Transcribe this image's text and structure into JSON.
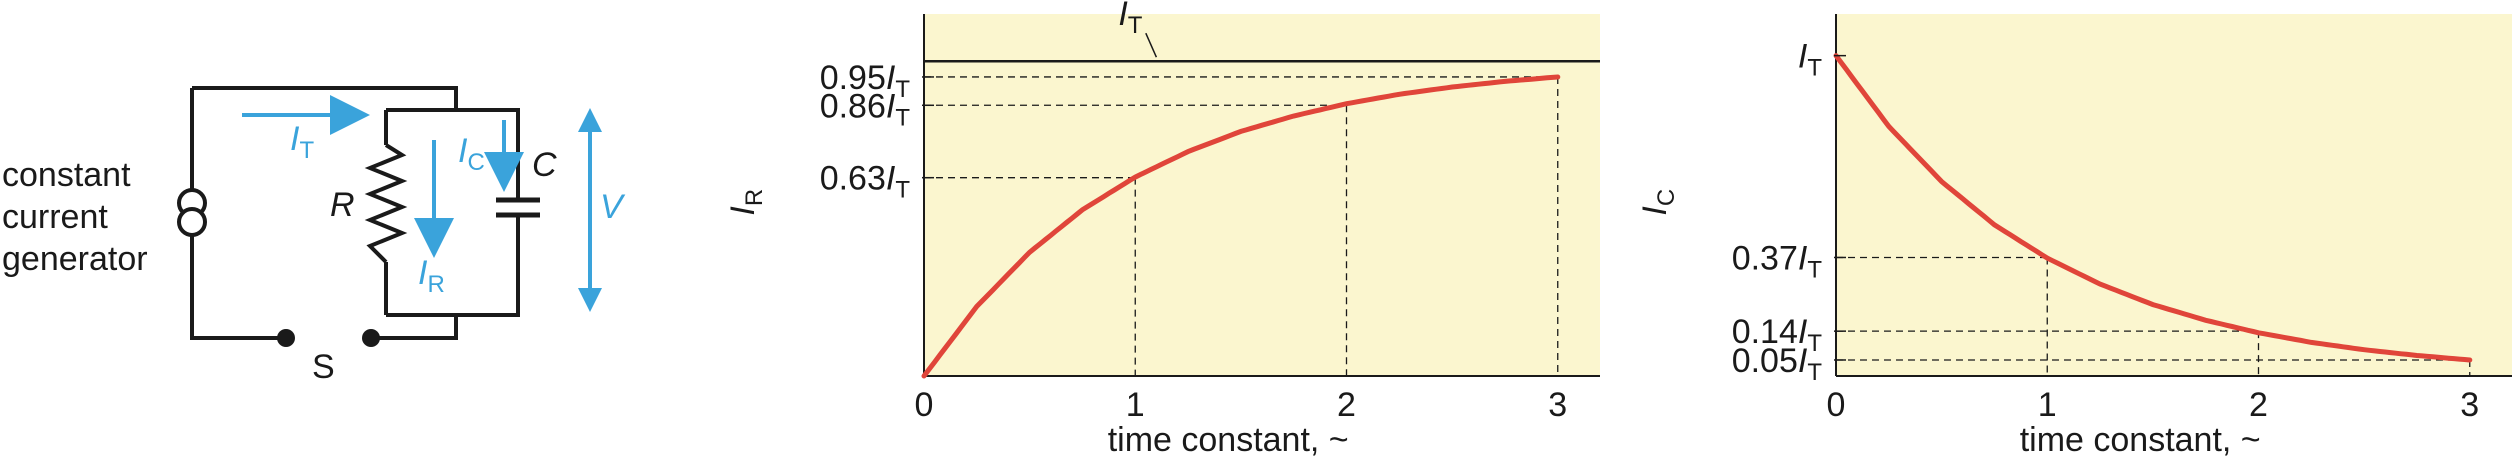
{
  "circuit": {
    "generator_label": [
      "constant",
      "current",
      "generator"
    ],
    "switch_label": "S",
    "resistor": "R",
    "capacitor": "C",
    "voltage": "V",
    "total_current": "I",
    "total_current_sub": "T",
    "resistor_current": "I",
    "resistor_current_sub": "R",
    "capacitor_current": "I",
    "capacitor_current_sub": "C",
    "colors": {
      "wire": "#1a1a1a",
      "arrow": "#3aa3db"
    }
  },
  "chart_data": [
    {
      "type": "line",
      "xlabel": "time constant, ~",
      "ylabel": "I",
      "ylabel_sub": "R",
      "x_ticks": [
        "0",
        "1",
        "2",
        "3"
      ],
      "xlim": [
        0,
        3.2
      ],
      "ylim": [
        0,
        1.15
      ],
      "asymptote": {
        "value": 1.0,
        "label": "I",
        "label_sub": "T"
      },
      "y_ticks": [
        {
          "value": 0.95,
          "label": "0.95",
          "unit": "I",
          "unit_sub": "T"
        },
        {
          "value": 0.86,
          "label": "0.86",
          "unit": "I",
          "unit_sub": "T"
        },
        {
          "value": 0.63,
          "label": "0.63",
          "unit": "I",
          "unit_sub": "T"
        }
      ],
      "series": [
        {
          "x": [
            0,
            0.25,
            0.5,
            0.75,
            1,
            1.25,
            1.5,
            1.75,
            2,
            2.25,
            2.5,
            2.75,
            3
          ],
          "y": [
            0,
            0.221,
            0.393,
            0.528,
            0.632,
            0.713,
            0.777,
            0.826,
            0.865,
            0.895,
            0.918,
            0.936,
            0.95
          ]
        }
      ],
      "guides": [
        {
          "x": 1,
          "y": 0.63
        },
        {
          "x": 2,
          "y": 0.86
        },
        {
          "x": 3,
          "y": 0.95
        }
      ],
      "colors": {
        "background": "#fbf6cf",
        "curve": "#e0453a"
      }
    },
    {
      "type": "line",
      "xlabel": "time constant, ~",
      "ylabel": "I",
      "ylabel_sub": "C",
      "x_ticks": [
        "0",
        "1",
        "2",
        "3"
      ],
      "xlim": [
        0,
        3.2
      ],
      "ylim": [
        0,
        1.13
      ],
      "y_ticks": [
        {
          "value": 1.0,
          "label": "",
          "unit": "I",
          "unit_sub": "T"
        },
        {
          "value": 0.37,
          "label": "0.37",
          "unit": "I",
          "unit_sub": "T"
        },
        {
          "value": 0.14,
          "label": "0.14",
          "unit": "I",
          "unit_sub": "T"
        },
        {
          "value": 0.05,
          "label": "0.05",
          "unit": "I",
          "unit_sub": "T"
        }
      ],
      "series": [
        {
          "x": [
            0,
            0.25,
            0.5,
            0.75,
            1,
            1.25,
            1.5,
            1.75,
            2,
            2.25,
            2.5,
            2.75,
            3
          ],
          "y": [
            1,
            0.779,
            0.607,
            0.472,
            0.368,
            0.287,
            0.223,
            0.174,
            0.135,
            0.105,
            0.082,
            0.064,
            0.05
          ]
        }
      ],
      "guides": [
        {
          "x": 1,
          "y": 0.37
        },
        {
          "x": 2,
          "y": 0.14
        },
        {
          "x": 3,
          "y": 0.05
        }
      ],
      "colors": {
        "background": "#fbf6cf",
        "curve": "#e0453a"
      }
    }
  ]
}
